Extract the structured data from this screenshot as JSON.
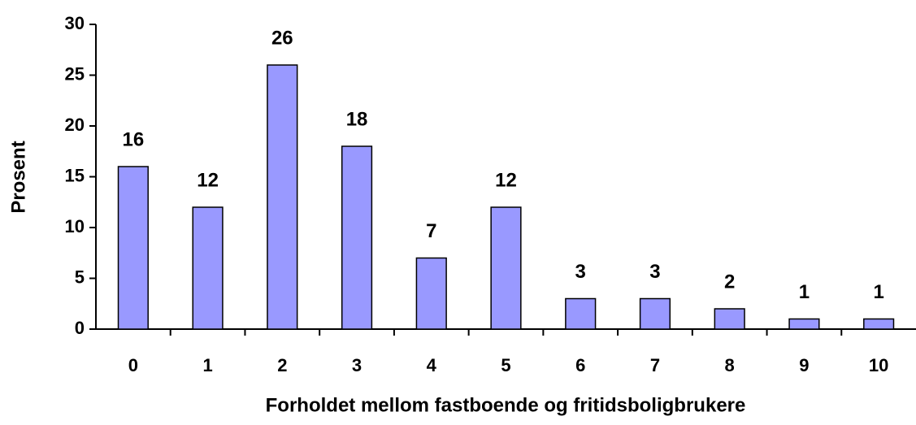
{
  "chart_data": {
    "type": "bar",
    "categories": [
      "0",
      "1",
      "2",
      "3",
      "4",
      "5",
      "6",
      "7",
      "8",
      "9",
      "10"
    ],
    "values": [
      16,
      12,
      26,
      18,
      7,
      12,
      3,
      3,
      2,
      1,
      1
    ],
    "color": "#9999ff",
    "ylim": [
      0,
      30
    ],
    "yticks": [
      0,
      5,
      10,
      15,
      20,
      25,
      30
    ],
    "grid": false,
    "y_label": "Prosent",
    "x_label": "Forholdet mellom fastboende og fritidsboligbrukere"
  }
}
